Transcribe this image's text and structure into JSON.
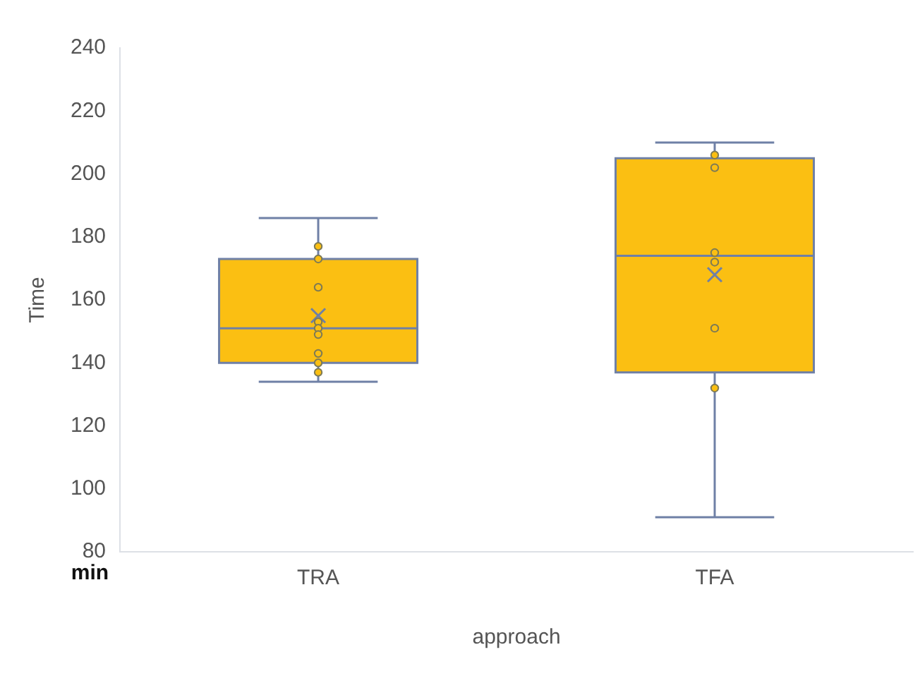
{
  "chart_data": {
    "type": "box",
    "categories": [
      "TRA",
      "TFA"
    ],
    "xlabel": "approach",
    "ylabel": "Time",
    "annotations": [
      "min"
    ],
    "ylim": [
      80,
      240
    ],
    "yticks": [
      80,
      100,
      120,
      140,
      160,
      180,
      200,
      220,
      240
    ],
    "grid": false,
    "legend": false,
    "marker": "circle",
    "series": [
      {
        "type": "box",
        "color": "#fbbf12",
        "boxes": [
          {
            "low": 134,
            "q1": 140,
            "median": 151,
            "q3": 173,
            "high": 186,
            "mean": 155
          },
          {
            "low": 91,
            "q1": 137,
            "median": 174,
            "q3": 205,
            "high": 210,
            "mean": 168
          }
        ]
      },
      {
        "type": "scatter",
        "color": "#fbbf12",
        "x": [
          "TRA",
          "TRA",
          "TRA",
          "TRA",
          "TRA",
          "TRA",
          "TRA",
          "TRA",
          "TRA",
          "TFA",
          "TFA",
          "TFA",
          "TFA",
          "TFA",
          "TFA"
        ],
        "values": [
          177,
          173,
          164,
          153,
          151,
          149,
          143,
          140,
          137,
          206,
          202,
          175,
          172,
          151,
          132
        ]
      }
    ]
  }
}
